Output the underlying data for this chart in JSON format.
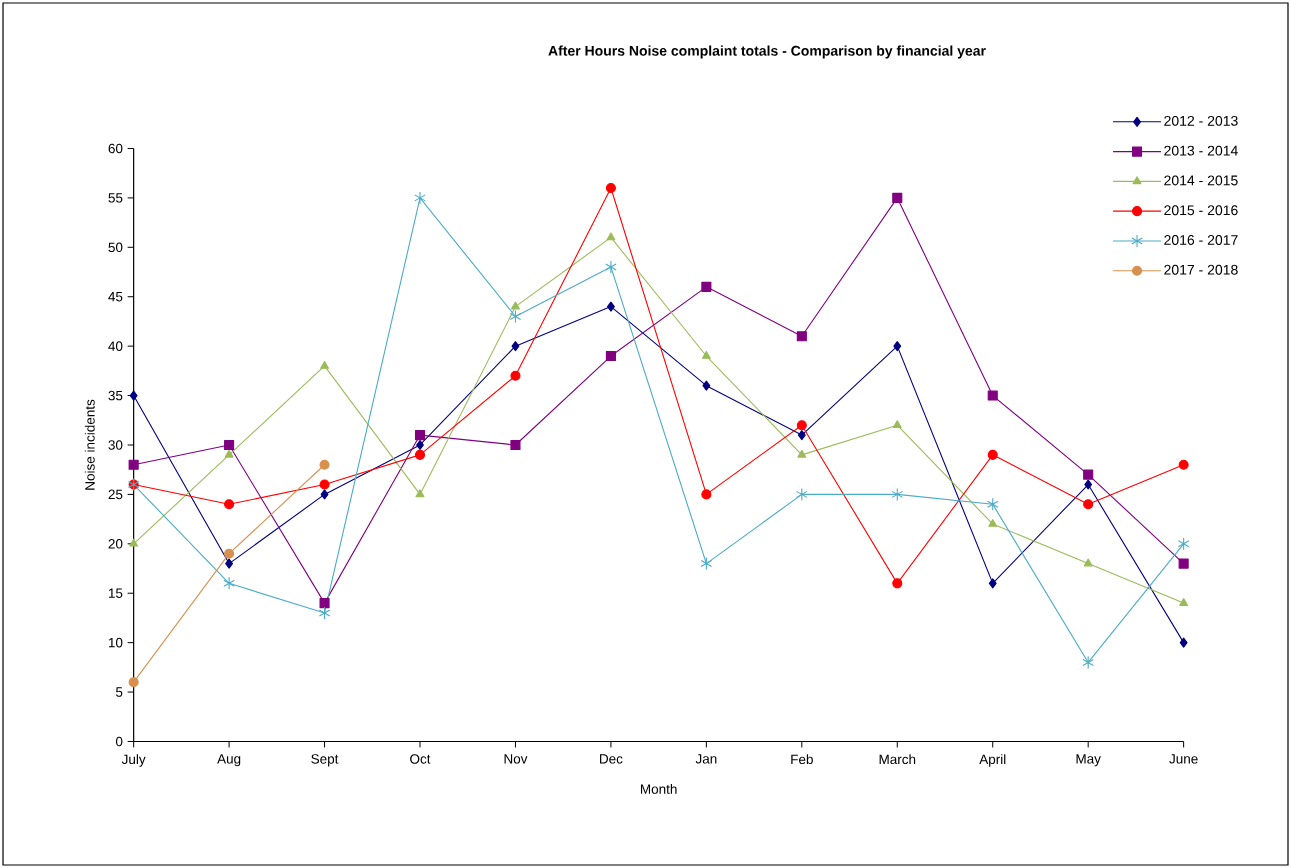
{
  "chart_data": {
    "type": "line",
    "title": "After Hours Noise complaint totals - Comparison by financial year",
    "xlabel": "Month",
    "ylabel": "Noise incidents",
    "categories": [
      "July",
      "Aug",
      "Sept",
      "Oct",
      "Nov",
      "Dec",
      "Jan",
      "Feb",
      "March",
      "April",
      "May",
      "June"
    ],
    "ylim": [
      0,
      60
    ],
    "yticks": [
      0,
      5,
      10,
      15,
      20,
      25,
      30,
      35,
      40,
      45,
      50,
      55,
      60
    ],
    "legend": "top right",
    "line_style": "solid",
    "series": [
      {
        "name": "2012 - 2013",
        "color": "#000080",
        "marker": "diamond",
        "values": [
          35,
          18,
          25,
          30,
          40,
          44,
          36,
          31,
          40,
          16,
          26,
          10
        ]
      },
      {
        "name": "2013 - 2014",
        "color": "#800080",
        "marker": "square",
        "values": [
          28,
          30,
          14,
          31,
          30,
          39,
          46,
          41,
          55,
          35,
          27,
          18
        ]
      },
      {
        "name": "2014 - 2015",
        "color": "#9bbb59",
        "marker": "triangle",
        "values": [
          20,
          29,
          38,
          25,
          44,
          51,
          39,
          29,
          32,
          22,
          18,
          14
        ]
      },
      {
        "name": "2015 - 2016",
        "color": "#ff0000",
        "marker": "circle",
        "values": [
          26,
          24,
          26,
          29,
          37,
          56,
          25,
          32,
          16,
          29,
          24,
          28
        ]
      },
      {
        "name": "2016 - 2017",
        "color": "#4bacc6",
        "marker": "cross",
        "values": [
          26,
          16,
          13,
          55,
          43,
          48,
          18,
          25,
          25,
          24,
          8,
          20
        ]
      },
      {
        "name": "2017 - 2018",
        "color": "#d8904f",
        "marker": "circle",
        "values": [
          6,
          19,
          28,
          null,
          null,
          null,
          null,
          null,
          null,
          null,
          null,
          null
        ]
      }
    ]
  }
}
